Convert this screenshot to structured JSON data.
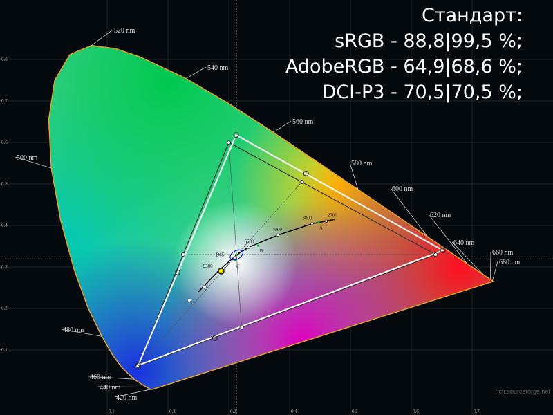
{
  "chart_data": {
    "type": "scatter",
    "title_lines": [
      "Стандарт:",
      "sRGB - 88,8|99,5 %;",
      "AdobeRGB - 64,9|68,6 %;",
      "DCI-P3 - 70,5|70,5 %;"
    ],
    "xlim": [
      0,
      0.8
    ],
    "ylim": [
      0,
      0.9
    ],
    "x_ticks": [
      "0.1",
      "0.2",
      "0.3",
      "0.4",
      "0.5",
      "0.6",
      "0.7"
    ],
    "y_ticks": [
      "0.1",
      "0.2",
      "0.3",
      "0.4",
      "0.5",
      "0.6",
      "0.7",
      "0.8"
    ],
    "grid": true,
    "spectral_locus": [
      [
        380,
        0.1741,
        0.005
      ],
      [
        420,
        0.1714,
        0.0051
      ],
      [
        440,
        0.1644,
        0.0109
      ],
      [
        450,
        0.1566,
        0.0177
      ],
      [
        460,
        0.144,
        0.0297
      ],
      [
        470,
        0.1241,
        0.0578
      ],
      [
        475,
        0.1096,
        0.0868
      ],
      [
        480,
        0.0913,
        0.1327
      ],
      [
        485,
        0.0687,
        0.2007
      ],
      [
        490,
        0.0454,
        0.295
      ],
      [
        495,
        0.0235,
        0.4127
      ],
      [
        500,
        0.0082,
        0.5384
      ],
      [
        505,
        0.0039,
        0.6548
      ],
      [
        510,
        0.0139,
        0.7502
      ],
      [
        515,
        0.0389,
        0.812
      ],
      [
        520,
        0.0743,
        0.8338
      ],
      [
        525,
        0.1142,
        0.8262
      ],
      [
        530,
        0.1547,
        0.8059
      ],
      [
        540,
        0.2296,
        0.7543
      ],
      [
        550,
        0.3016,
        0.6923
      ],
      [
        560,
        0.3731,
        0.6245
      ],
      [
        570,
        0.4441,
        0.5547
      ],
      [
        580,
        0.5125,
        0.4866
      ],
      [
        590,
        0.5752,
        0.4242
      ],
      [
        600,
        0.627,
        0.3725
      ],
      [
        610,
        0.6658,
        0.334
      ],
      [
        620,
        0.6915,
        0.3083
      ],
      [
        630,
        0.7079,
        0.292
      ],
      [
        640,
        0.719,
        0.2809
      ],
      [
        660,
        0.73,
        0.27
      ],
      [
        680,
        0.7334,
        0.2666
      ],
      [
        700,
        0.7347,
        0.2653
      ]
    ],
    "wavelength_labels": [
      {
        "nm": 420,
        "text": "420 nm"
      },
      {
        "nm": 440,
        "text": "440 nm"
      },
      {
        "nm": 460,
        "text": "460 nm"
      },
      {
        "nm": 480,
        "text": "480 nm"
      },
      {
        "nm": 500,
        "text": "500 nm"
      },
      {
        "nm": 520,
        "text": "520 nm"
      },
      {
        "nm": 540,
        "text": "540 nm"
      },
      {
        "nm": 560,
        "text": "560 nm"
      },
      {
        "nm": 580,
        "text": "580 nm"
      },
      {
        "nm": 600,
        "text": "600 nm"
      },
      {
        "nm": 620,
        "text": "620 nm"
      },
      {
        "nm": 640,
        "text": "640 nm"
      },
      {
        "nm": 660,
        "text": "660 nm"
      },
      {
        "nm": 680,
        "text": "680 nm"
      }
    ],
    "reference_gamut": {
      "red": [
        0.64,
        0.33
      ],
      "green": [
        0.3,
        0.6
      ],
      "blue": [
        0.15,
        0.06
      ],
      "yellow": [
        0.42,
        0.505
      ],
      "cyan": [
        0.225,
        0.33
      ],
      "magenta": [
        0.321,
        0.154
      ]
    },
    "measured_gamut": {
      "red": [
        0.652,
        0.34
      ],
      "green": [
        0.312,
        0.618
      ],
      "blue": [
        0.151,
        0.063
      ],
      "yellow": [
        0.427,
        0.525
      ],
      "cyan": [
        0.216,
        0.287
      ],
      "magenta": [
        0.277,
        0.128
      ]
    },
    "white_point": [
      0.2875,
      0.29
    ],
    "grayscale_points": [
      [
        0.235,
        0.22
      ],
      [
        0.26,
        0.252
      ],
      [
        0.285,
        0.293
      ],
      [
        0.31,
        0.322
      ]
    ],
    "planckian_locus": [
      [
        0.25,
        0.24
      ],
      [
        0.2848,
        0.2932
      ],
      [
        0.3127,
        0.329
      ],
      [
        0.3324,
        0.3474
      ],
      [
        0.3805,
        0.3768
      ],
      [
        0.4369,
        0.4041
      ],
      [
        0.4599,
        0.4106
      ],
      [
        0.475,
        0.415
      ]
    ],
    "cct_labels": [
      {
        "text": "9300",
        "x": 0.2848,
        "y": 0.2932
      },
      {
        "text": "5500",
        "x": 0.3324,
        "y": 0.3474
      },
      {
        "text": "4000",
        "x": 0.3805,
        "y": 0.3768
      },
      {
        "text": "3000",
        "x": 0.4369,
        "y": 0.4041
      },
      {
        "text": "2700",
        "x": 0.4599,
        "y": 0.4106
      }
    ],
    "illuminants": [
      {
        "text": "A",
        "x": 0.4476,
        "y": 0.4074
      },
      {
        "text": "B",
        "x": 0.3484,
        "y": 0.3516
      },
      {
        "text": "C",
        "x": 0.3101,
        "y": 0.3162
      },
      {
        "text": "D65",
        "x": 0.3127,
        "y": 0.329
      }
    ],
    "colors": {
      "locus_outline": "#e8a020",
      "measured": "#ffffff",
      "reference": "#333333",
      "planck": "#000000",
      "d65_ellipse": "#1020e0"
    }
  },
  "credit": "hcfr.sourceforge.net"
}
